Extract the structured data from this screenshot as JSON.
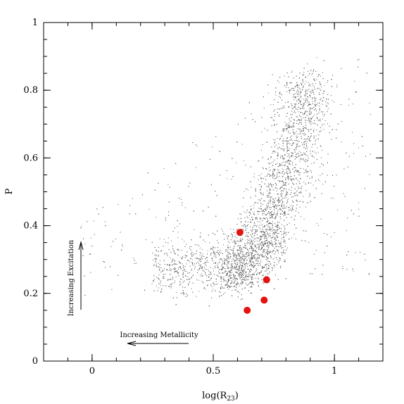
{
  "chart_data": {
    "type": "scatter",
    "xlabel": "log(R23)",
    "xlabel_main": "log(R",
    "xlabel_sub": "23",
    "xlabel_close": ")",
    "ylabel": "P",
    "xlim": [
      -0.2,
      1.2
    ],
    "ylim": [
      0,
      1
    ],
    "xticks": [
      0,
      0.5,
      1
    ],
    "xtick_labels": [
      "0",
      "0.5",
      "1"
    ],
    "yticks": [
      0,
      0.2,
      0.4,
      0.6,
      0.8,
      1
    ],
    "ytick_labels": [
      "0",
      "0.2",
      "0.4",
      "0.6",
      "0.8",
      "1"
    ],
    "annotations": {
      "excitation": "Increasing Excitation",
      "metallicity": "Increasing Metallicity"
    },
    "colors": {
      "background_points": "#555555",
      "highlight_points": "#e51212"
    },
    "background_cloud_points": 6000,
    "highlighted_points": [
      {
        "x": 0.61,
        "y": 0.38
      },
      {
        "x": 0.72,
        "y": 0.24
      },
      {
        "x": 0.71,
        "y": 0.18
      },
      {
        "x": 0.64,
        "y": 0.15
      }
    ]
  }
}
